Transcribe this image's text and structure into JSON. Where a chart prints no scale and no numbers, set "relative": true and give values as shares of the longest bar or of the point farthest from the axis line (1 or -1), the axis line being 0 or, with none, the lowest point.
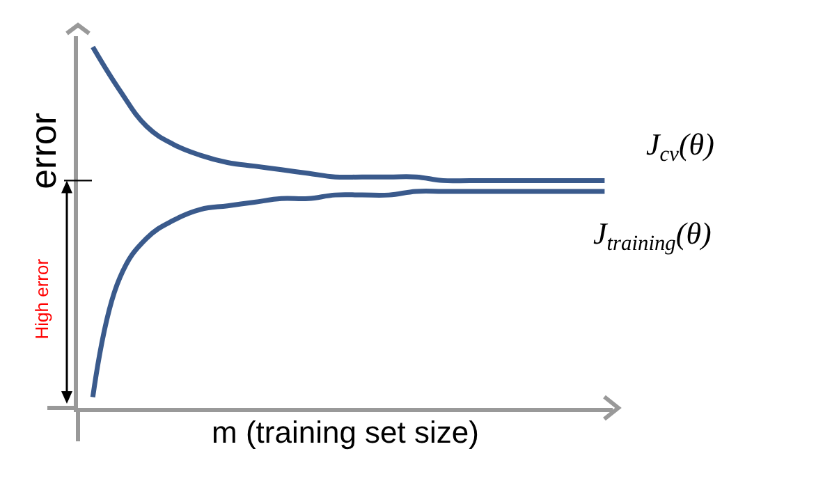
{
  "chart_data": {
    "type": "line",
    "relative": true,
    "ylabel": "error",
    "xlabel": "m (training set size)",
    "categories": [
      null,
      null,
      null,
      null,
      null,
      null,
      null,
      null,
      null,
      null,
      null,
      null,
      null,
      null,
      null,
      null,
      null,
      null,
      null,
      null
    ],
    "series": [
      {
        "name": "J$_{cv}$(θ)",
        "color": "#3a5a8c",
        "values": [
          1,
          0.88,
          0.78,
          0.73,
          0.7,
          0.68,
          0.67,
          0.66,
          0.65,
          0.64,
          0.64,
          0.64,
          0.64,
          0.63,
          0.63,
          0.63,
          0.63,
          0.63,
          0.63,
          0.63
        ]
      },
      {
        "name": "J$_{training}$(θ)",
        "color": "#3a5a8c",
        "values": [
          0.03,
          0.36,
          0.47,
          0.52,
          0.55,
          0.56,
          0.57,
          0.58,
          0.58,
          0.59,
          0.59,
          0.59,
          0.6,
          0.6,
          0.6,
          0.6,
          0.6,
          0.6,
          0.6,
          0.6
        ]
      }
    ],
    "annotations": [
      "High error"
    ],
    "legend": false,
    "grid": false,
    "marker": "none",
    "line_style": "solid"
  }
}
